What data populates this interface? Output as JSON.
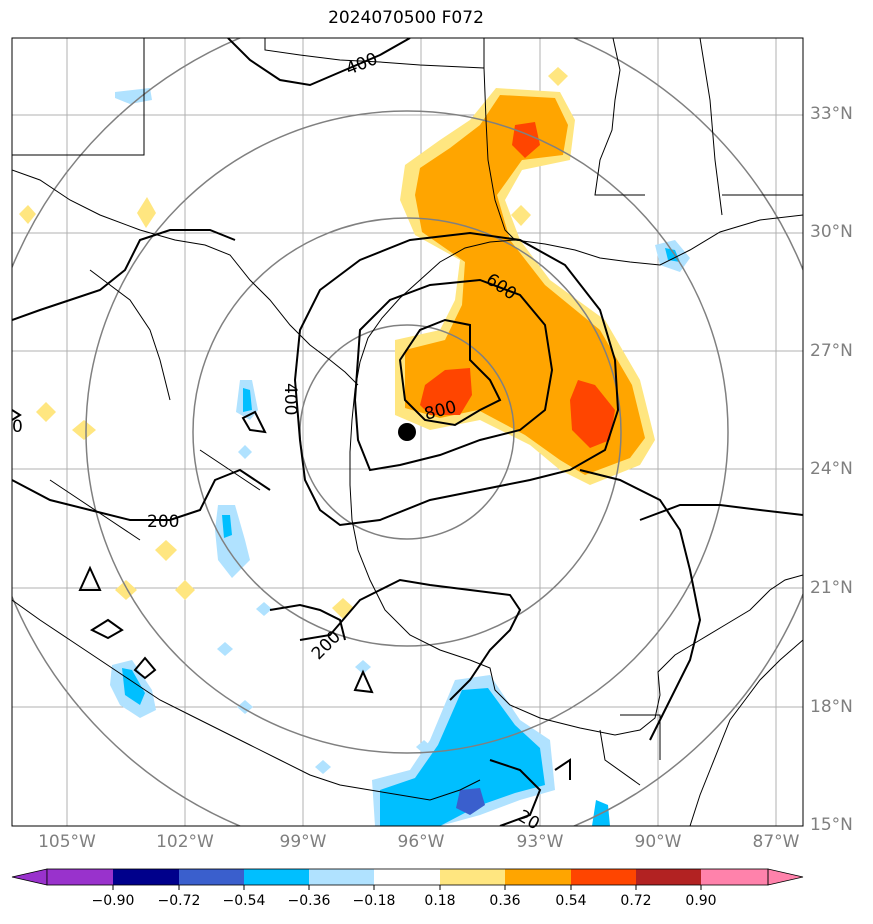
{
  "title": "2024070500 F072",
  "map": {
    "projection_center": {
      "lon": -96.6,
      "lat": 25.0
    },
    "storm_marker": {
      "lon": -96.6,
      "lat": 25.0
    },
    "lat_labels": [
      "33°N",
      "30°N",
      "27°N",
      "24°N",
      "21°N",
      "18°N",
      "15°N"
    ],
    "lon_labels": [
      "105°W",
      "102°W",
      "99°W",
      "96°W",
      "93°W",
      "90°W",
      "87°W"
    ],
    "range_ring_color": "#808080",
    "contour_color": "#000000",
    "contour_labels": [
      {
        "text": "400",
        "id": "contour-label-400-north"
      },
      {
        "text": "600",
        "id": "contour-label-600"
      },
      {
        "text": "800",
        "id": "contour-label-800"
      },
      {
        "text": "400",
        "id": "contour-label-400-west"
      },
      {
        "text": "200",
        "id": "contour-label-200-west"
      },
      {
        "text": "200",
        "id": "contour-label-200-south"
      },
      {
        "text": "0",
        "id": "contour-label-0-edge"
      },
      {
        "text": "20",
        "id": "contour-label-20-bottom"
      }
    ]
  },
  "colorbar": {
    "ticks": [
      "−0.90",
      "−0.72",
      "−0.54",
      "−0.36",
      "−0.18",
      "0.18",
      "0.36",
      "0.54",
      "0.72",
      "0.90"
    ],
    "colors": [
      "#9932cc",
      "#00008b",
      "#3a5fcd",
      "#00bfff",
      "#b0e2ff",
      "#ffffff",
      "#ffe680",
      "#ffa500",
      "#ff4500",
      "#b22222",
      "#ff82ab"
    ]
  }
}
